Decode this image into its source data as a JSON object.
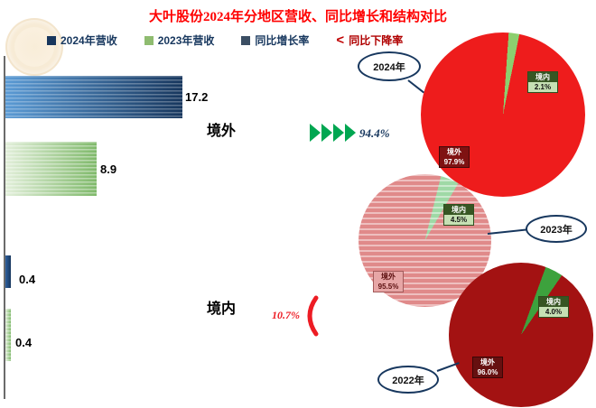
{
  "title": "大叶股份2024年分地区营收、同比增长和结构对比",
  "colors": {
    "title": "#ff0000",
    "legend_text": "#17375e",
    "arrow_green": "#00a651",
    "growth_text": "#17375e",
    "decline_value": "#ed1c24"
  },
  "legend": {
    "items": [
      {
        "label": "2024年营收",
        "marker_color": "#17365d",
        "text_color": "#17375e"
      },
      {
        "label": "2023年营收",
        "marker_color": "#8fbc70",
        "text_color": "#17375e"
      },
      {
        "label": "同比增长率",
        "marker_color": "#3b4e63",
        "text_color": "#17375e"
      },
      {
        "label": "同比下降率",
        "marker_glyph": "<",
        "marker_color": "#c00000",
        "text_color": "#b00000"
      }
    ]
  },
  "growth": {
    "overseas_rate": "94.4%",
    "domestic_rate": "10.7%"
  },
  "chart_data": [
    {
      "type": "bar",
      "orientation": "horizontal",
      "categories": [
        "境外",
        "境内"
      ],
      "series": [
        {
          "name": "2024年营收",
          "values": [
            17.2,
            0.4
          ],
          "color": "#2a5ca8"
        },
        {
          "name": "2023年营收",
          "values": [
            8.9,
            0.4
          ],
          "color": "#a8d08d"
        }
      ],
      "xlim": [
        0,
        17.2
      ],
      "grid": false
    },
    {
      "type": "pie",
      "year_label": "2024年",
      "slices": [
        {
          "label": "境内",
          "value": 2.1,
          "display": "2.1%"
        },
        {
          "label": "境外",
          "value": 97.9,
          "display": "97.9%"
        }
      ],
      "slice_color": "#8ccf6f",
      "base_color": "#ee1c1c",
      "striped": false,
      "start_deg": 4
    },
    {
      "type": "pie",
      "year_label": "2023年",
      "slices": [
        {
          "label": "境内",
          "value": 4.5,
          "display": "4.5%"
        },
        {
          "label": "境外",
          "value": 95.5,
          "display": "95.5%"
        }
      ],
      "slice_color": "#9fd9a6",
      "base_color": "#e08a8a",
      "striped": true,
      "start_deg": 14
    },
    {
      "type": "pie",
      "year_label": "2022年",
      "slices": [
        {
          "label": "境内",
          "value": 4.0,
          "display": "4.0%"
        },
        {
          "label": "境外",
          "value": 96.0,
          "display": "96.0%"
        }
      ],
      "slice_color": "#3da23d",
      "base_color": "#a31212",
      "striped": false,
      "start_deg": 20
    }
  ]
}
